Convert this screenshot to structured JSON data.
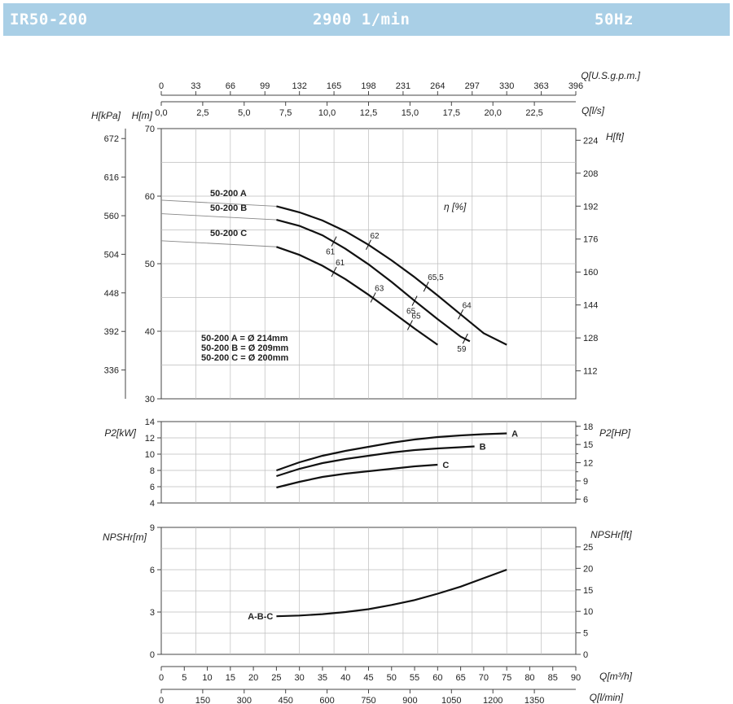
{
  "header": {
    "model": "IR50-200",
    "speed": "2900 1/min",
    "frequency": "50Hz",
    "background_color": "#a9cfe6"
  },
  "chart_data": {
    "type": "line",
    "flow_axes": {
      "usgpm": {
        "label": "Q[U.S.g.p.m.]",
        "ticks": [
          "0",
          "33",
          "66",
          "99",
          "132",
          "165",
          "198",
          "231",
          "264",
          "297",
          "330",
          "363",
          "396"
        ]
      },
      "ls": {
        "label": "Q[l/s]",
        "ticks": [
          "0,0",
          "2,5",
          "5,0",
          "7,5",
          "10,0",
          "12,5",
          "15,0",
          "17,5",
          "20,0",
          "22,5"
        ]
      },
      "m3h": {
        "label": "Q[m³/h]",
        "ticks": [
          "0",
          "5",
          "10",
          "15",
          "20",
          "25",
          "30",
          "35",
          "40",
          "45",
          "50",
          "55",
          "60",
          "65",
          "70",
          "75",
          "80",
          "85",
          "90"
        ]
      },
      "lmin": {
        "label": "Q[l/min]",
        "ticks": [
          "0",
          "150",
          "300",
          "450",
          "600",
          "750",
          "900",
          "1050",
          "1200",
          "1350"
        ]
      },
      "xlim": [
        0,
        90
      ]
    },
    "head_panel": {
      "ylabel_left": "H[m]",
      "ylabel_kpa": "H[kPa]",
      "ylabel_right": "H[ft]",
      "ylim": [
        30,
        70
      ],
      "yticks_m": [
        "30",
        "40",
        "50",
        "60",
        "70"
      ],
      "yticks_kpa": [
        "336",
        "392",
        "448",
        "504",
        "560",
        "616",
        "672"
      ],
      "yticks_ft": [
        "112",
        "128",
        "144",
        "160",
        "176",
        "192",
        "208",
        "224"
      ],
      "efficiency_label": "η [%]",
      "series": [
        {
          "name": "50-200 A",
          "x": [
            25,
            30,
            35,
            40,
            45,
            50,
            55,
            60,
            65,
            70,
            75
          ],
          "y": [
            58.5,
            57.6,
            56.4,
            54.8,
            52.8,
            50.5,
            48,
            45.3,
            42.5,
            39.7,
            38
          ]
        },
        {
          "name": "50-200 B",
          "x": [
            25,
            30,
            35,
            40,
            45,
            50,
            55,
            60,
            65,
            67
          ],
          "y": [
            56.5,
            55.6,
            54.2,
            52.2,
            49.9,
            47.3,
            44.5,
            41.8,
            39.2,
            38.5
          ]
        },
        {
          "name": "50-200 C",
          "x": [
            25,
            30,
            35,
            40,
            45,
            50,
            55,
            60
          ],
          "y": [
            52.5,
            51.3,
            49.7,
            47.7,
            45.4,
            42.9,
            40.4,
            38
          ]
        }
      ],
      "efficiency_marks": [
        {
          "label": "62",
          "x": 45,
          "y": 52.8
        },
        {
          "label": "65,5",
          "x": 57.5,
          "y": 46.6
        },
        {
          "label": "64",
          "x": 65,
          "y": 42.5
        },
        {
          "label": "61",
          "x": 37.5,
          "y": 53.3
        },
        {
          "label": "65",
          "x": 55,
          "y": 44.5
        },
        {
          "label": "59",
          "x": 66,
          "y": 38.9
        },
        {
          "label": "61",
          "x": 37.5,
          "y": 48.8
        },
        {
          "label": "63",
          "x": 46,
          "y": 45
        },
        {
          "label": "65",
          "x": 54,
          "y": 40.9
        }
      ],
      "diameter_notes": [
        "50-200 A = Ø 214mm",
        "50-200 B = Ø 209mm",
        "50-200 C = Ø 200mm"
      ]
    },
    "power_panel": {
      "ylabel_left": "P2[kW]",
      "ylabel_right": "P2[HP]",
      "ylim": [
        4,
        14
      ],
      "yticks_kw": [
        "4",
        "6",
        "8",
        "10",
        "12",
        "14"
      ],
      "yticks_hp": [
        "6",
        "9",
        "12",
        "15",
        "18"
      ],
      "series": [
        {
          "name": "A",
          "x": [
            25,
            30,
            35,
            40,
            45,
            50,
            55,
            60,
            65,
            70,
            75
          ],
          "y": [
            8,
            9,
            9.8,
            10.4,
            10.9,
            11.4,
            11.8,
            12.1,
            12.3,
            12.45,
            12.55
          ]
        },
        {
          "name": "B",
          "x": [
            25,
            30,
            35,
            40,
            45,
            50,
            55,
            60,
            65,
            68
          ],
          "y": [
            7.3,
            8.2,
            8.9,
            9.4,
            9.8,
            10.2,
            10.5,
            10.7,
            10.85,
            10.95
          ]
        },
        {
          "name": "C",
          "x": [
            25,
            30,
            35,
            40,
            45,
            50,
            55,
            60
          ],
          "y": [
            5.9,
            6.6,
            7.2,
            7.6,
            7.9,
            8.2,
            8.5,
            8.7
          ]
        }
      ]
    },
    "npsh_panel": {
      "ylabel_left": "NPSHr[m]",
      "ylabel_right": "NPSHr[ft]",
      "ylim": [
        0,
        9
      ],
      "yticks_m": [
        "0",
        "3",
        "6",
        "9"
      ],
      "yticks_ft": [
        "0",
        "5",
        "10",
        "15",
        "20",
        "25"
      ],
      "series": [
        {
          "name": "A-B-C",
          "x": [
            25,
            30,
            35,
            40,
            45,
            50,
            55,
            60,
            65,
            70,
            75
          ],
          "y": [
            2.7,
            2.75,
            2.85,
            3,
            3.2,
            3.5,
            3.85,
            4.3,
            4.8,
            5.4,
            6
          ]
        }
      ]
    }
  }
}
